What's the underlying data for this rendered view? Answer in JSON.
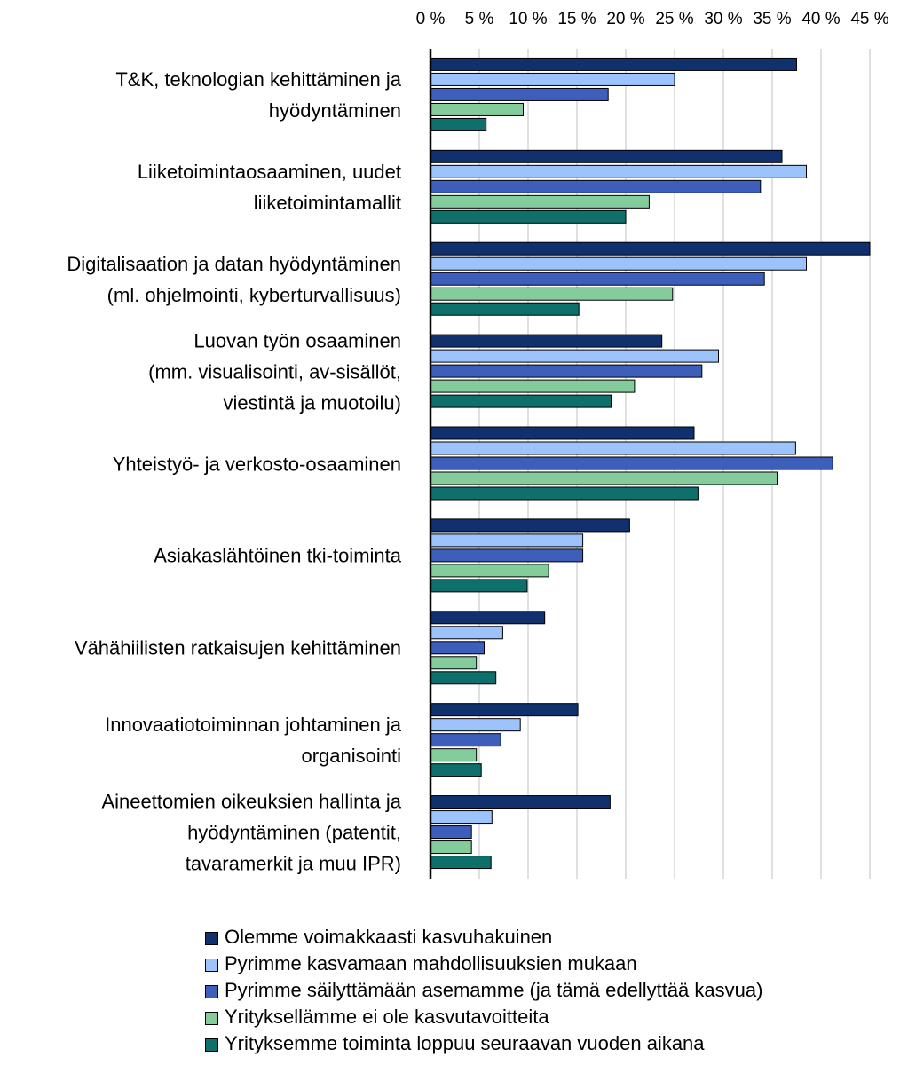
{
  "chart_data": {
    "type": "bar",
    "orientation": "horizontal",
    "categories": [
      "T&K, teknologian kehittäminen ja\nhyödyntäminen",
      "Liiketoimintaosaaminen, uudet\nliiketoimintamallit",
      "Digitalisaation ja datan hyödyntäminen\n(ml. ohjelmointi, kyberturvallisuus)",
      "Luovan työn osaaminen\n(mm. visualisointi, av-sisällöt,\nviestintä ja muotoilu)",
      "Yhteistyö- ja verkosto-osaaminen",
      "Asiakaslähtöinen tki-toiminta",
      "Vähähiilisten ratkaisujen kehittäminen",
      "Innovaatiotoiminnan johtaminen ja\norganisointi",
      "Aineettomien oikeuksien hallinta ja\nhyödyntäminen (patentit,\ntavaramerkit ja muu IPR)"
    ],
    "series": [
      {
        "name": "Olemme voimakkaasti kasvuhakuinen",
        "color": "#10306e",
        "values": [
          37.5,
          36,
          45,
          23.7,
          27,
          20.4,
          11.7,
          15.1,
          18.4
        ]
      },
      {
        "name": "Pyrimme kasvamaan mahdollisuuksien mukaan",
        "color": "#9cc3fb",
        "values": [
          25,
          38.5,
          38.5,
          29.5,
          37.4,
          15.6,
          7.4,
          9.2,
          6.3
        ]
      },
      {
        "name": "Pyrimme säilyttämään asemamme (ja tämä edellyttää kasvua)",
        "color": "#3d5fbb",
        "values": [
          18.2,
          33.8,
          34.2,
          27.8,
          41.2,
          15.6,
          5.5,
          7.2,
          4.2
        ]
      },
      {
        "name": "Yrityksellämme ei ole kasvutavoitteita",
        "color": "#85cc9c",
        "values": [
          9.5,
          22.4,
          24.8,
          20.9,
          35.5,
          12.1,
          4.7,
          4.7,
          4.2
        ]
      },
      {
        "name": "Yrityksemme toiminta loppuu seuraavan vuoden aikana",
        "color": "#0f6f6b",
        "values": [
          5.7,
          20,
          15.2,
          18.5,
          27.4,
          9.9,
          6.7,
          5.2,
          6.2
        ]
      }
    ],
    "xlim": [
      0,
      45
    ],
    "xticks": [
      {
        "value": 0,
        "label": "0 %"
      },
      {
        "value": 5,
        "label": "5 %"
      },
      {
        "value": 10,
        "label": "10 %"
      },
      {
        "value": 15,
        "label": "15 %"
      },
      {
        "value": 20,
        "label": "20 %"
      },
      {
        "value": 25,
        "label": "25 %"
      },
      {
        "value": 30,
        "label": "30 %"
      },
      {
        "value": 35,
        "label": "35 %"
      },
      {
        "value": 40,
        "label": "40 %"
      },
      {
        "value": 45,
        "label": "45 %"
      }
    ],
    "grid": true,
    "legend": "bottom"
  }
}
